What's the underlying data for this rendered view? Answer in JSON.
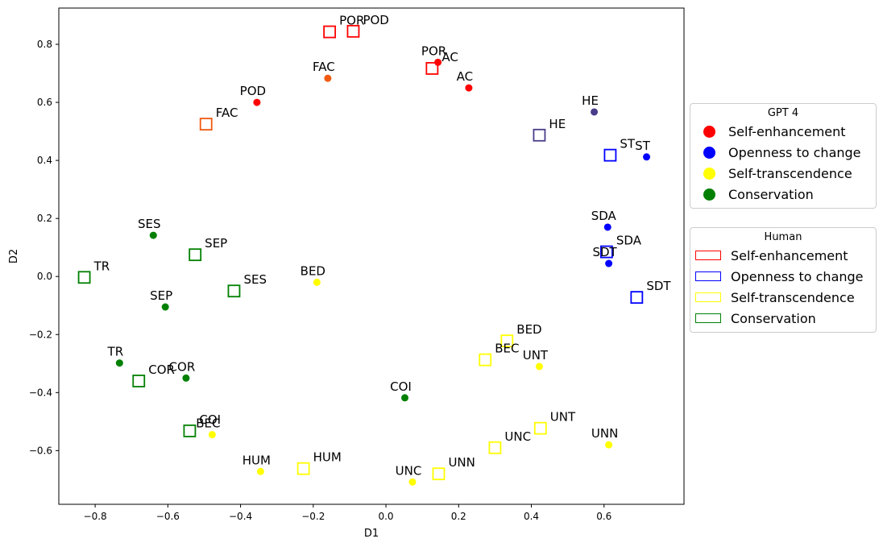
{
  "chart_data": {
    "type": "scatter",
    "xlabel": "D1",
    "ylabel": "D2",
    "xlim": [
      -0.9,
      0.82
    ],
    "ylim": [
      -0.785,
      0.925
    ],
    "xticks": [
      -0.8,
      -0.6,
      -0.4,
      -0.2,
      0.0,
      0.2,
      0.4,
      0.6
    ],
    "xtick_labels": [
      "−0.8",
      "−0.6",
      "−0.4",
      "−0.2",
      "0.0",
      "0.2",
      "0.4",
      "0.6"
    ],
    "yticks": [
      -0.6,
      -0.4,
      -0.2,
      0.0,
      0.2,
      0.4,
      0.6,
      0.8
    ],
    "ytick_labels": [
      "−0.6",
      "−0.4",
      "−0.2",
      "0.0",
      "0.2",
      "0.4",
      "0.6",
      "0.8"
    ],
    "grid": false,
    "colors": {
      "self_enhancement": "#ff0000",
      "openness": "#0000ff",
      "self_transcendence": "#ffff00",
      "conservation": "#008000",
      "fac": "#f05a10",
      "he": "#483d8b"
    },
    "series": [
      {
        "name": "GPT 4",
        "marker": "circle",
        "points": [
          {
            "label": "POD",
            "x": -0.355,
            "y": 0.6,
            "color": "#ff0000"
          },
          {
            "label": "FAC",
            "x": -0.16,
            "y": 0.683,
            "color": "#f05a10"
          },
          {
            "label": "POR",
            "x": 0.143,
            "y": 0.738,
            "color": "#ff0000"
          },
          {
            "label": "AC",
            "x": 0.228,
            "y": 0.65,
            "color": "#ff0000"
          },
          {
            "label": "HE",
            "x": 0.573,
            "y": 0.567,
            "color": "#483d8b"
          },
          {
            "label": "ST",
            "x": 0.717,
            "y": 0.412,
            "color": "#0000ff"
          },
          {
            "label": "SDA",
            "x": 0.61,
            "y": 0.17,
            "color": "#0000ff"
          },
          {
            "label": "SDT",
            "x": 0.613,
            "y": 0.045,
            "color": "#0000ff"
          },
          {
            "label": "BED",
            "x": -0.19,
            "y": -0.02,
            "color": "#ffff00"
          },
          {
            "label": "UNT",
            "x": 0.422,
            "y": -0.31,
            "color": "#ffff00"
          },
          {
            "label": "UNN",
            "x": 0.613,
            "y": -0.58,
            "color": "#ffff00"
          },
          {
            "label": "UNC",
            "x": 0.073,
            "y": -0.708,
            "color": "#ffff00"
          },
          {
            "label": "HUM",
            "x": -0.345,
            "y": -0.672,
            "color": "#ffff00"
          },
          {
            "label": "BEC",
            "x": -0.478,
            "y": -0.545,
            "color": "#ffff00"
          },
          {
            "label": "SES",
            "x": -0.64,
            "y": 0.142,
            "color": "#008000"
          },
          {
            "label": "SEP",
            "x": -0.607,
            "y": -0.105,
            "color": "#008000"
          },
          {
            "label": "TR",
            "x": -0.733,
            "y": -0.298,
            "color": "#008000"
          },
          {
            "label": "COR",
            "x": -0.55,
            "y": -0.35,
            "color": "#008000"
          },
          {
            "label": "COI",
            "x": 0.052,
            "y": -0.418,
            "color": "#008000"
          }
        ]
      },
      {
        "name": "Human",
        "marker": "square",
        "points": [
          {
            "label": "POR",
            "x": -0.155,
            "y": 0.843,
            "color": "#ff0000"
          },
          {
            "label": "POD",
            "x": -0.09,
            "y": 0.845,
            "color": "#ff0000"
          },
          {
            "label": "AC",
            "x": 0.127,
            "y": 0.717,
            "color": "#ff0000"
          },
          {
            "label": "FAC",
            "x": -0.495,
            "y": 0.525,
            "color": "#f05a10"
          },
          {
            "label": "HE",
            "x": 0.422,
            "y": 0.487,
            "color": "#483d8b"
          },
          {
            "label": "ST",
            "x": 0.617,
            "y": 0.418,
            "color": "#0000ff"
          },
          {
            "label": "SDA",
            "x": 0.607,
            "y": 0.085,
            "color": "#0000ff"
          },
          {
            "label": "SDT",
            "x": 0.69,
            "y": -0.072,
            "color": "#0000ff"
          },
          {
            "label": "BED",
            "x": 0.333,
            "y": -0.222,
            "color": "#ffff00"
          },
          {
            "label": "BEC",
            "x": 0.273,
            "y": -0.287,
            "color": "#ffff00"
          },
          {
            "label": "UNT",
            "x": 0.425,
            "y": -0.523,
            "color": "#ffff00"
          },
          {
            "label": "UNC",
            "x": 0.3,
            "y": -0.59,
            "color": "#ffff00"
          },
          {
            "label": "UNN",
            "x": 0.145,
            "y": -0.68,
            "color": "#ffff00"
          },
          {
            "label": "HUM",
            "x": -0.227,
            "y": -0.662,
            "color": "#ffff00"
          },
          {
            "label": "SEP",
            "x": -0.525,
            "y": 0.075,
            "color": "#008000"
          },
          {
            "label": "SES",
            "x": -0.418,
            "y": -0.05,
            "color": "#008000"
          },
          {
            "label": "TR",
            "x": -0.83,
            "y": -0.003,
            "color": "#008000"
          },
          {
            "label": "COR",
            "x": -0.68,
            "y": -0.36,
            "color": "#008000"
          },
          {
            "label": "COI",
            "x": -0.54,
            "y": -0.532,
            "color": "#008000"
          }
        ]
      }
    ]
  },
  "legends": {
    "gpt": {
      "title": "GPT 4",
      "items": [
        {
          "label": "Self-enhancement",
          "color": "#ff0000"
        },
        {
          "label": "Openness to change",
          "color": "#0000ff"
        },
        {
          "label": "Self-transcendence",
          "color": "#ffff00"
        },
        {
          "label": "Conservation",
          "color": "#008000"
        }
      ]
    },
    "human": {
      "title": "Human",
      "items": [
        {
          "label": "Self-enhancement",
          "color": "#ff0000"
        },
        {
          "label": "Openness to change",
          "color": "#0000ff"
        },
        {
          "label": "Self-transcendence",
          "color": "#ffff00"
        },
        {
          "label": "Conservation",
          "color": "#008000"
        }
      ]
    }
  }
}
